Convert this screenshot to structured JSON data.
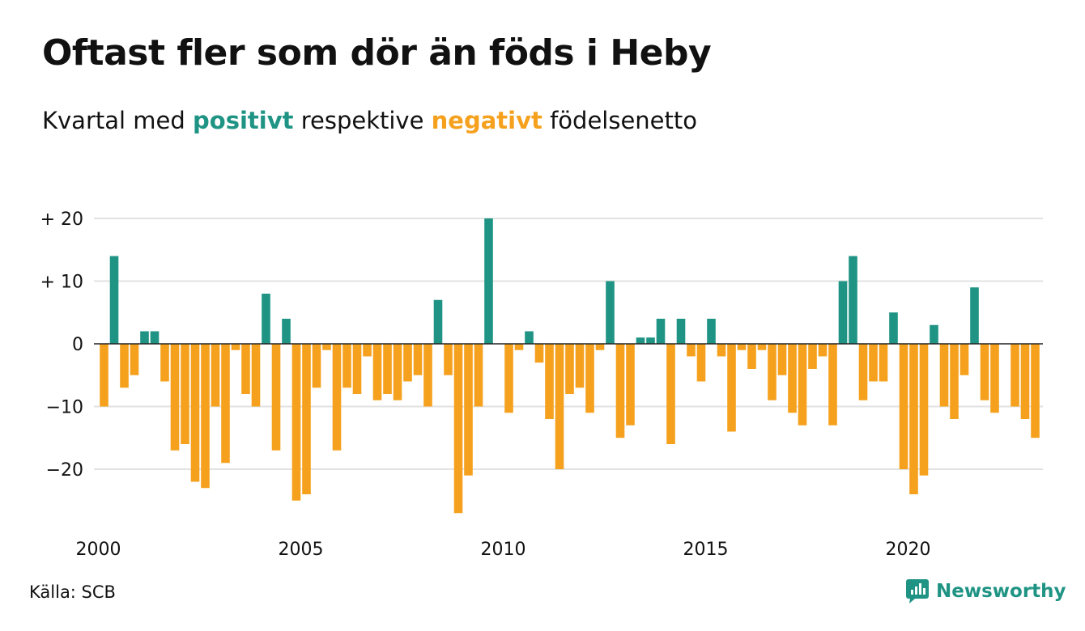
{
  "title": "Oftast fler som dör än föds i Heby",
  "subtitle": {
    "pre": "Kvartal med ",
    "positive_word": "positivt",
    "mid": " respektive ",
    "negative_word": "negativt",
    "post": " födelsenetto"
  },
  "source": "Källa: SCB",
  "brand": {
    "name": "Newsworthy",
    "icon": "newsworthy-logo-icon"
  },
  "colors": {
    "positive": "#1f9484",
    "negative": "#f5a11e",
    "grid": "#e2e2e2",
    "zero": "#222222",
    "text": "#111111"
  },
  "chart_data": {
    "type": "bar",
    "title": "Oftast fler som dör än föds i Heby",
    "subtitle": "Kvartal med positivt respektive negativt födelsenetto",
    "x_start": 2000,
    "x_step": 0.25,
    "x_ticks": [
      2000,
      2005,
      2010,
      2015,
      2020
    ],
    "x_tick_labels": [
      "2000",
      "2005",
      "2010",
      "2015",
      "2020"
    ],
    "ylim": [
      -28,
      20
    ],
    "y_ticks": [
      20,
      10,
      0,
      -10,
      -20
    ],
    "y_tick_labels": [
      "+ 20",
      "+ 10",
      "0",
      "−10",
      "−20"
    ],
    "grid": true,
    "values": [
      -10,
      14,
      -7,
      -5,
      2,
      2,
      -6,
      -17,
      -16,
      -22,
      -23,
      -10,
      -19,
      -1,
      -8,
      -10,
      8,
      -17,
      4,
      -25,
      -24,
      -7,
      -1,
      -17,
      -7,
      -8,
      -2,
      -9,
      -8,
      -9,
      -6,
      -5,
      -10,
      7,
      -5,
      -27,
      -21,
      -10,
      20,
      0,
      -11,
      -1,
      2,
      -3,
      -12,
      -20,
      -8,
      -7,
      -11,
      -1,
      10,
      -15,
      -13,
      1,
      1,
      4,
      -16,
      4,
      -2,
      -6,
      4,
      -2,
      -14,
      -1,
      -4,
      -1,
      -9,
      -5,
      -11,
      -13,
      -4,
      -2,
      -13,
      10,
      14,
      -9,
      -6,
      -6,
      5,
      -20,
      -24,
      -21,
      3,
      -10,
      -12,
      -5,
      9,
      -9,
      -11,
      0,
      -10,
      -12,
      -15
    ]
  }
}
